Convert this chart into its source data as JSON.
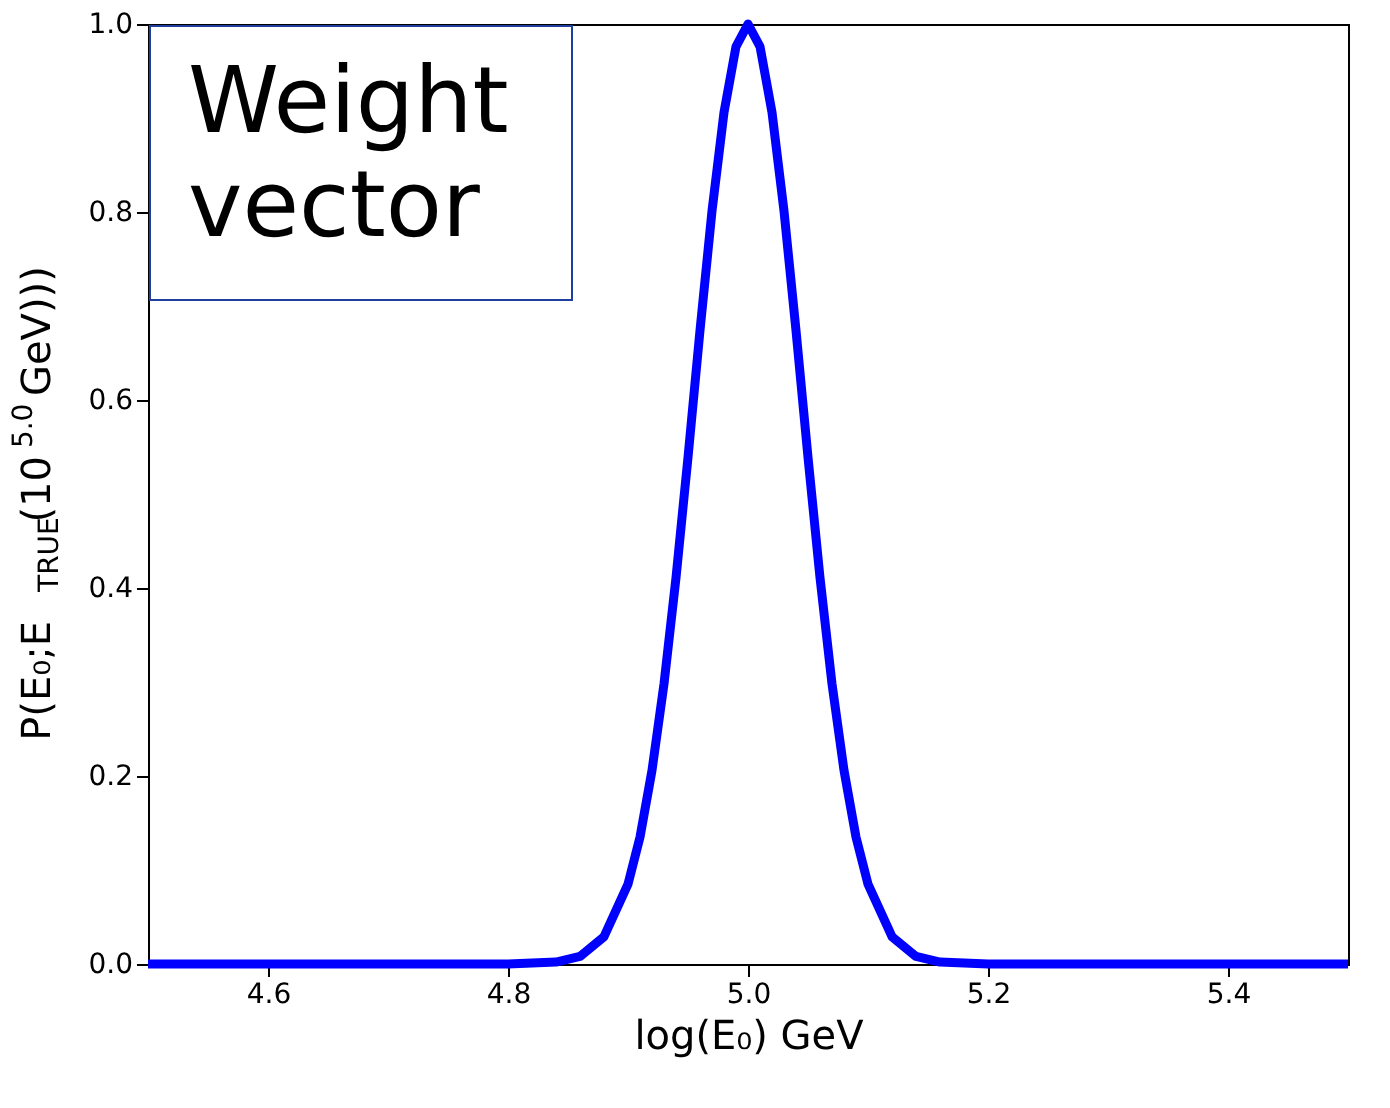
{
  "chart_data": {
    "type": "line",
    "xlabel": "log(E₀) GeV",
    "ylabel": "P(E₀;E$_{TRUE}$(10$^{5.0}$GeV)))",
    "x": [
      4.5,
      4.8,
      4.84,
      4.86,
      4.88,
      4.9,
      4.91,
      4.92,
      4.93,
      4.94,
      4.95,
      4.96,
      4.97,
      4.98,
      4.99,
      5.0,
      5.01,
      5.02,
      5.03,
      5.04,
      5.05,
      5.06,
      5.07,
      5.08,
      5.09,
      5.1,
      5.12,
      5.14,
      5.16,
      5.2,
      5.5
    ],
    "series": [
      {
        "color": "#0000ff",
        "values": [
          0,
          0,
          0.002,
          0.008,
          0.029,
          0.085,
          0.135,
          0.206,
          0.298,
          0.411,
          0.539,
          0.674,
          0.801,
          0.906,
          0.976,
          1,
          0.976,
          0.906,
          0.801,
          0.674,
          0.539,
          0.411,
          0.298,
          0.206,
          0.135,
          0.085,
          0.029,
          0.008,
          0.002,
          0,
          0
        ]
      }
    ],
    "xlim": [
      4.5,
      5.5
    ],
    "xticks": [
      4.6,
      4.8,
      {
        "value": 5,
        "label": "5.0"
      },
      5.2,
      5.4
    ],
    "ylim": [
      0,
      1.0
    ],
    "yticks": [
      {
        "value": 0,
        "label": "0.0"
      },
      0.2,
      0.4,
      0.6,
      0.8,
      {
        "value": 1,
        "label": "1.0"
      }
    ],
    "grid": false,
    "legend": false,
    "marker": "none",
    "line_style": "solid",
    "annotations": [
      "Weight vector"
    ]
  }
}
